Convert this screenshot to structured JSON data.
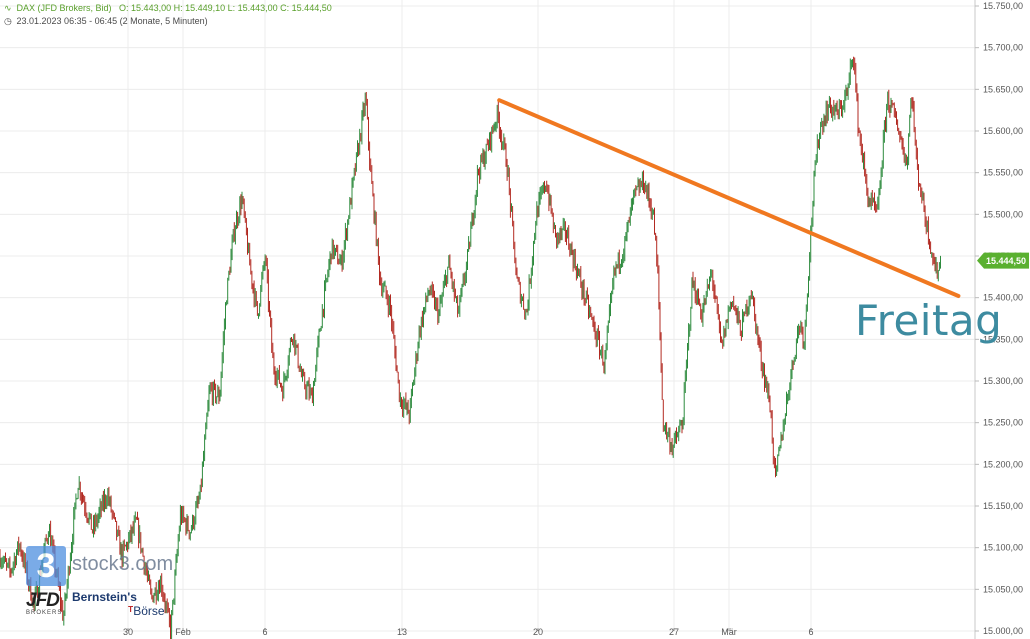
{
  "header": {
    "instrument": "DAX (JFD Brokers, Bid)",
    "ohlc": "O: 15.443,00   H: 15.449,10   L: 15.443,00   C: 15.444,50",
    "range": "23.01.2023 06:35 - 06:45   (2 Monate, 5 Minuten)"
  },
  "annotation_text": "Freitag",
  "branding": {
    "stock3": "stock3.com",
    "stock3_logo_glyph": "3",
    "jfd": "JFD",
    "jfd_sub": "BROKERS",
    "bernstein_1": "Bernstein's",
    "bernstein_2": "Börse"
  },
  "colors": {
    "candle_up": "#2e8b3e",
    "candle_down": "#b22a22",
    "trendline": "#f07820",
    "last_price_badge": "#5ab030",
    "freitag": "#3d8ba0"
  },
  "chart_data": {
    "type": "candlestick",
    "ylim": [
      15000,
      15750
    ],
    "yticks": [
      15000,
      15050,
      15100,
      15150,
      15200,
      15250,
      15300,
      15350,
      15400,
      15450,
      15500,
      15550,
      15600,
      15650,
      15700,
      15750
    ],
    "ytick_labels": [
      "15.000,00",
      "15.050,00",
      "15.100,00",
      "15.150,00",
      "15.200,00",
      "15.250,00",
      "15.300,00",
      "15.350,00",
      "15.400,00",
      "15.450,00",
      "15.500,00",
      "15.550,00",
      "15.600,00",
      "15.650,00",
      "15.700,00",
      "15.750,00"
    ],
    "xtick_labels": [
      "30",
      "Feb",
      "6",
      "13",
      "20",
      "27",
      "Mär",
      "6"
    ],
    "last_price": 15444.5,
    "last_price_label": "15.444,50",
    "anchors": [
      [
        0,
        15090
      ],
      [
        0.01,
        15070
      ],
      [
        0.02,
        15105
      ],
      [
        0.035,
        15030
      ],
      [
        0.05,
        15125
      ],
      [
        0.065,
        15015
      ],
      [
        0.08,
        15180
      ],
      [
        0.095,
        15120
      ],
      [
        0.11,
        15165
      ],
      [
        0.125,
        15090
      ],
      [
        0.14,
        15130
      ],
      [
        0.155,
        15040
      ],
      [
        0.165,
        15060
      ],
      [
        0.175,
        15000
      ],
      [
        0.185,
        15140
      ],
      [
        0.195,
        15120
      ],
      [
        0.205,
        15160
      ],
      [
        0.215,
        15290
      ],
      [
        0.225,
        15280
      ],
      [
        0.232,
        15400
      ],
      [
        0.24,
        15480
      ],
      [
        0.248,
        15520
      ],
      [
        0.256,
        15440
      ],
      [
        0.264,
        15380
      ],
      [
        0.272,
        15450
      ],
      [
        0.28,
        15320
      ],
      [
        0.29,
        15290
      ],
      [
        0.3,
        15360
      ],
      [
        0.31,
        15300
      ],
      [
        0.32,
        15280
      ],
      [
        0.33,
        15380
      ],
      [
        0.34,
        15460
      ],
      [
        0.35,
        15440
      ],
      [
        0.36,
        15520
      ],
      [
        0.37,
        15600
      ],
      [
        0.375,
        15640
      ],
      [
        0.38,
        15550
      ],
      [
        0.39,
        15420
      ],
      [
        0.4,
        15390
      ],
      [
        0.41,
        15280
      ],
      [
        0.42,
        15260
      ],
      [
        0.43,
        15360
      ],
      [
        0.44,
        15410
      ],
      [
        0.45,
        15380
      ],
      [
        0.46,
        15440
      ],
      [
        0.47,
        15380
      ],
      [
        0.48,
        15450
      ],
      [
        0.49,
        15550
      ],
      [
        0.5,
        15580
      ],
      [
        0.51,
        15620
      ],
      [
        0.52,
        15560
      ],
      [
        0.53,
        15420
      ],
      [
        0.54,
        15380
      ],
      [
        0.55,
        15500
      ],
      [
        0.56,
        15540
      ],
      [
        0.57,
        15470
      ],
      [
        0.58,
        15480
      ],
      [
        0.59,
        15440
      ],
      [
        0.6,
        15400
      ],
      [
        0.61,
        15360
      ],
      [
        0.62,
        15320
      ],
      [
        0.63,
        15430
      ],
      [
        0.64,
        15460
      ],
      [
        0.65,
        15520
      ],
      [
        0.66,
        15540
      ],
      [
        0.67,
        15500
      ],
      [
        0.675,
        15420
      ],
      [
        0.68,
        15250
      ],
      [
        0.69,
        15220
      ],
      [
        0.7,
        15250
      ],
      [
        0.71,
        15420
      ],
      [
        0.72,
        15380
      ],
      [
        0.73,
        15430
      ],
      [
        0.74,
        15340
      ],
      [
        0.75,
        15400
      ],
      [
        0.76,
        15360
      ],
      [
        0.77,
        15410
      ],
      [
        0.78,
        15330
      ],
      [
        0.79,
        15270
      ],
      [
        0.795,
        15180
      ],
      [
        0.8,
        15220
      ],
      [
        0.81,
        15300
      ],
      [
        0.82,
        15370
      ],
      [
        0.825,
        15350
      ],
      [
        0.83,
        15450
      ],
      [
        0.835,
        15540
      ],
      [
        0.84,
        15600
      ],
      [
        0.85,
        15630
      ],
      [
        0.86,
        15620
      ],
      [
        0.87,
        15650
      ],
      [
        0.875,
        15700
      ],
      [
        0.88,
        15610
      ],
      [
        0.89,
        15520
      ],
      [
        0.9,
        15500
      ],
      [
        0.91,
        15640
      ],
      [
        0.92,
        15610
      ],
      [
        0.93,
        15560
      ],
      [
        0.935,
        15650
      ],
      [
        0.94,
        15560
      ],
      [
        0.95,
        15490
      ],
      [
        0.96,
        15430
      ],
      [
        0.965,
        15444
      ]
    ],
    "trendline": {
      "start": [
        0.512,
        15637
      ],
      "end": [
        0.983,
        15402
      ]
    }
  }
}
